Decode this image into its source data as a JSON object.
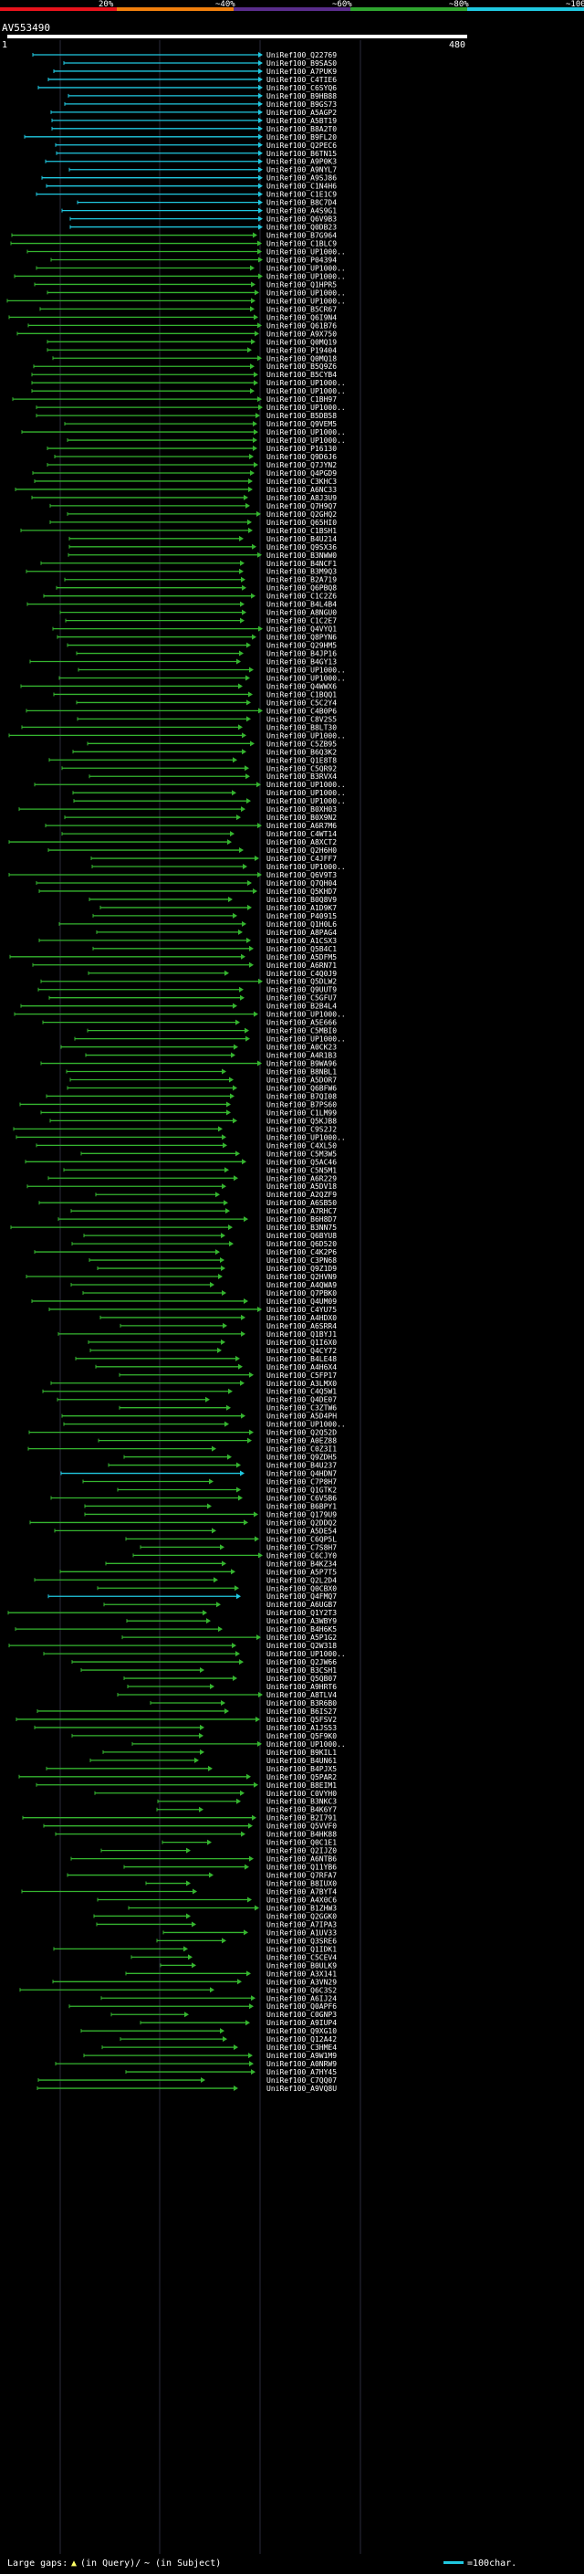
{
  "chart_data": {
    "type": "alignment-overview",
    "query_id": "AV553490",
    "query_start": "1",
    "query_end": "480",
    "identity_scale": {
      "labels": [
        "20%",
        "~40%",
        "~60%",
        "~80%",
        "~100%"
      ],
      "colors": [
        "#e8131c",
        "#f07f0d",
        "#5a2d8c",
        "#2fa52f",
        "#20c8e0"
      ]
    },
    "legend": {
      "large_gaps_label": "Large gaps:",
      "in_query_label": "(in Query)/",
      "in_subject_label": "(in Subject)",
      "scale_label": "=100char."
    },
    "hits": [
      "UniRef100_Q22769",
      "UniRef100_B9SAS0",
      "UniRef100_A7PUK9",
      "UniRef100_C4TIE6",
      "UniRef100_C6SYQ6",
      "UniRef100_B9HB88",
      "UniRef100_B9GS73",
      "UniRef100_A5AGP2",
      "UniRef100_A5BT19",
      "UniRef100_B8A2T0",
      "UniRef100_B9FL20",
      "UniRef100_Q2PEC6",
      "UniRef100_B6TN15",
      "UniRef100_A9P0K3",
      "UniRef100_A9NYL7",
      "UniRef100_A9SJ86",
      "UniRef100_C1N4H6",
      "UniRef100_C1E1C9",
      "UniRef100_B8C7D4",
      "UniRef100_A4S9G1",
      "UniRef100_Q6V9B3",
      "UniRef100_Q0DB23",
      "UniRef100_B7G964",
      "UniRef100_C1BLC9",
      "UniRef100_UP1000..",
      "UniRef100_P04394",
      "UniRef100_UP1000..",
      "UniRef100_UP1000..",
      "UniRef100_Q1HPR5",
      "UniRef100_UP1000..",
      "UniRef100_UP1000..",
      "UniRef100_B5CR67",
      "UniRef100_Q6I9N4",
      "UniRef100_Q61B76",
      "UniRef100_A9X750",
      "UniRef100_Q0MQ19",
      "UniRef100_P19404",
      "UniRef100_Q0MQ18",
      "UniRef100_B5Q9Z6",
      "UniRef100_B5CYB4",
      "UniRef100_UP1000..",
      "UniRef100_UP1000..",
      "UniRef100_C1BH97",
      "UniRef100_UP1000..",
      "UniRef100_B5DB58",
      "UniRef100_Q9VEM5",
      "UniRef100_UP1000..",
      "UniRef100_UP1000..",
      "UniRef100_P16130",
      "UniRef100_Q9D6J6",
      "UniRef100_Q7JYN2",
      "UniRef100_Q4PGD9",
      "UniRef100_C3KHC3",
      "UniRef100_A6NC33",
      "UniRef100_A8J3U9",
      "UniRef100_Q7H9Q7",
      "UniRef100_Q2GHQ2",
      "UniRef100_Q65HI0",
      "UniRef100_C1BSH1",
      "UniRef100_B4U214",
      "UniRef100_Q9SX36",
      "UniRef100_B3NWW0",
      "UniRef100_B4NCF1",
      "UniRef100_B3M9Q3",
      "UniRef100_B2A719",
      "UniRef100_Q6PBQ8",
      "UniRef100_C1C2Z6",
      "UniRef100_B4L4B4",
      "UniRef100_A8NGU0",
      "UniRef100_C1C2E7",
      "UniRef100_Q4VYQ1",
      "UniRef100_Q8PYN6",
      "UniRef100_Q29HM5",
      "UniRef100_B4JP16",
      "UniRef100_B4GY13",
      "UniRef100_UP1000..",
      "UniRef100_UP1000..",
      "UniRef100_Q4WWX6",
      "UniRef100_C1BQQ1",
      "UniRef100_C5C2Y4",
      "UniRef100_C4B0P6",
      "UniRef100_C8V2S5",
      "UniRef100_B8LT30",
      "UniRef100_UP1000..",
      "UniRef100_C5ZB95",
      "UniRef100_B6Q3K2",
      "UniRef100_Q1E8T8",
      "UniRef100_C5QR92",
      "UniRef100_B3RVX4",
      "UniRef100_UP1000..",
      "UniRef100_UP1000..",
      "UniRef100_UP1000..",
      "UniRef100_B0XH03",
      "UniRef100_B0X9N2",
      "UniRef100_A6R7M6",
      "UniRef100_C4WT14",
      "UniRef100_A8XCT2",
      "UniRef100_Q2H6H0",
      "UniRef100_C4JFF7",
      "UniRef100_UP1000..",
      "UniRef100_Q6V9T3",
      "UniRef100_Q7QH04",
      "UniRef100_Q5KHD7",
      "UniRef100_B0Q8V9",
      "UniRef100_A1D9K7",
      "UniRef100_P40915",
      "UniRef100_Q1H0L6",
      "UniRef100_A8PAG4",
      "UniRef100_A1CSX3",
      "UniRef100_Q5B4C1",
      "UniRef100_A5DFM5",
      "UniRef100_A6RN71",
      "UniRef100_C4Q0J9",
      "UniRef100_Q5DLW2",
      "UniRef100_Q9UUT9",
      "UniRef100_C5GFU7",
      "UniRef100_B2B4L4",
      "UniRef100_UP1000..",
      "UniRef100_A5E666",
      "UniRef100_C5MBI0",
      "UniRef100_UP1000..",
      "UniRef100_A0CK23",
      "UniRef100_A4R1B3",
      "UniRef100_B9WA96",
      "UniRef100_B8NBL1",
      "UniRef100_A5DOR7",
      "UniRef100_Q6BFW6",
      "UniRef100_B7QI08",
      "UniRef100_B7PS60",
      "UniRef100_C1LM99",
      "UniRef100_Q5KJB8",
      "UniRef100_C9S2J2",
      "UniRef100_UP1000..",
      "UniRef100_C4XL50",
      "UniRef100_C5M3W5",
      "UniRef100_Q5AC46",
      "UniRef100_C5N5M1",
      "UniRef100_A6R229",
      "UniRef100_A5DV18",
      "UniRef100_A2QZF9",
      "UniRef100_A6SB50",
      "UniRef100_A7RHC7",
      "UniRef100_B6H8D7",
      "UniRef100_B3NN75",
      "UniRef100_Q6BYU8",
      "UniRef100_Q6D520",
      "UniRef100_C4K2P6",
      "UniRef100_C3PN68",
      "UniRef100_Q9Z1D9",
      "UniRef100_Q2HVN9",
      "UniRef100_A4QWA9",
      "UniRef100_Q7PBK0",
      "UniRef100_Q4UM09",
      "UniRef100_C4YU75",
      "UniRef100_A4HDX0",
      "UniRef100_A6SRR4",
      "UniRef100_Q1BYJ1",
      "UniRef100_Q1I6X0",
      "UniRef100_Q4CY72",
      "UniRef100_B4LE48",
      "UniRef100_A4H6X4",
      "UniRef100_C5FP17",
      "UniRef100_A3LMX0",
      "UniRef100_C4Q5W1",
      "UniRef100_Q4DE07",
      "UniRef100_C3ZTW6",
      "UniRef100_A5D4PH",
      "UniRef100_UP1000..",
      "UniRef100_Q2Q52D",
      "UniRef100_A0EZ88",
      "UniRef100_C0Z3I1",
      "UniRef100_Q9ZDH5",
      "UniRef100_B4U237",
      "UniRef100_Q4HDN7",
      "UniRef100_C7P8H7",
      "UniRef100_Q1GTK2",
      "UniRef100_C6V5B6",
      "UniRef100_B6BPY1",
      "UniRef100_Q179U9",
      "UniRef100_Q2DDQ2",
      "UniRef100_A5DE54",
      "UniRef100_C6QP5L",
      "UniRef100_C7S8H7",
      "UniRef100_C6CJY0",
      "UniRef100_B4KZ34",
      "UniRef100_A5P7T5",
      "UniRef100_Q2L2D4",
      "UniRef100_Q0CBX0",
      "UniRef100_Q4FMQ7",
      "UniRef100_A6UGB7",
      "UniRef100_Q1Y2T3",
      "UniRef100_A3WBY9",
      "UniRef100_B4H6K5",
      "UniRef100_A5P1G2",
      "UniRef100_Q2W318",
      "UniRef100_UP1000..",
      "UniRef100_Q2JW66",
      "UniRef100_B3CSH1",
      "UniRef100_Q5QB07",
      "UniRef100_A9HRT6",
      "UniRef100_A8TLV4",
      "UniRef100_B3R6B0",
      "UniRef100_B6IS27",
      "UniRef100_Q5FSV2",
      "UniRef100_A1JS53",
      "UniRef100_Q5F9K0",
      "UniRef100_UP1000..",
      "UniRef100_B9KIL1",
      "UniRef100_B4UN61",
      "UniRef100_B4PJX5",
      "UniRef100_Q5PAR2",
      "UniRef100_B8EIM1",
      "UniRef100_C0VYH0",
      "UniRef100_B3NKC3",
      "UniRef100_B4K6Y7",
      "UniRef100_B2I791",
      "UniRef100_Q5VVF0",
      "UniRef100_B4HK88",
      "UniRef100_Q0C1E1",
      "UniRef100_Q2IJZ0",
      "UniRef100_A6NTB6",
      "UniRef100_Q11YB6",
      "UniRef100_Q7RFA7",
      "UniRef100_B8IUX0",
      "UniRef100_A7BYT4",
      "UniRef100_A4X0C6",
      "UniRef100_B1ZHW3",
      "UniRef100_Q2GGK0",
      "UniRef100_A7IPA3",
      "UniRef100_A1UV33",
      "UniRef100_Q3SRE6",
      "UniRef100_Q1IDK1",
      "UniRef100_C5CEV4",
      "UniRef100_B0ULK9",
      "UniRef100_A3X141",
      "UniRef100_A3VN29",
      "UniRef100_Q6C3S2",
      "UniRef100_A6IJ24",
      "UniRef100_Q0APF6",
      "UniRef100_C0GNP3",
      "UniRef100_A9IUP4",
      "UniRef100_Q9XG10",
      "UniRef100_Q12A42",
      "UniRef100_C3HME4",
      "UniRef100_A9W1M9",
      "UniRef100_A0NRW9",
      "UniRef100_A7HY45",
      "UniRef100_C7QQ07",
      "UniRef100_A9VQ8U"
    ]
  }
}
